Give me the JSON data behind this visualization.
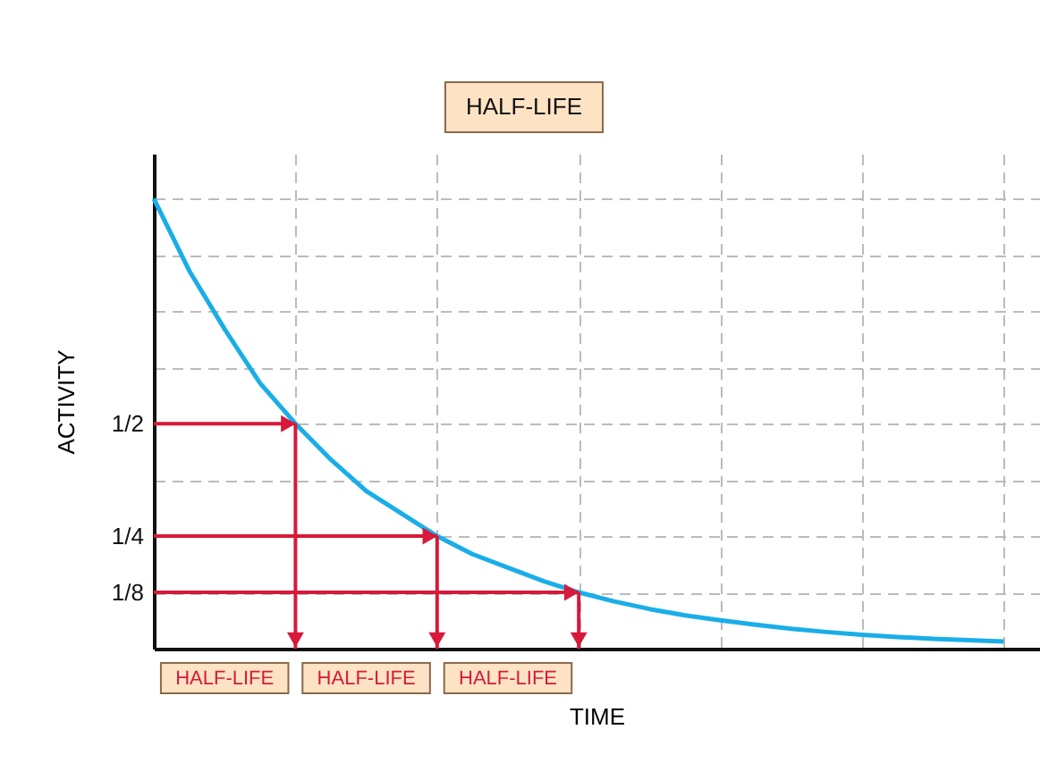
{
  "chart_data": {
    "type": "line",
    "title": "HALF-LIFE",
    "xlabel": "TIME",
    "ylabel": "ACTIVITY",
    "categories": [
      null,
      null,
      null,
      null,
      null,
      null,
      null,
      null,
      null,
      null,
      null,
      null,
      null,
      null,
      null,
      null,
      null,
      null,
      null,
      null,
      null,
      null,
      null,
      null,
      null
    ],
    "ylim": [
      0,
      1.1
    ],
    "yticks": [
      {
        "value": 0.125,
        "label": "1/8"
      },
      {
        "value": 0.25,
        "label": "1/4"
      },
      {
        "value": 0.375,
        "label": null
      },
      {
        "value": 0.5,
        "label": "1/2"
      },
      {
        "value": 0.625,
        "label": null
      },
      {
        "value": 0.75,
        "label": null
      },
      {
        "value": 0.875,
        "label": null
      },
      {
        "value": 1,
        "label": null
      }
    ],
    "tick_labels": "y",
    "grid": true,
    "marker": "none",
    "line_style": "solid",
    "series": [
      {
        "color": "#1aaee8",
        "values": [
          1,
          0.84,
          0.71,
          0.59,
          0.5,
          0.42,
          0.35,
          0.3,
          0.25,
          0.21,
          0.18,
          0.15,
          0.125,
          0.105,
          0.088,
          0.074,
          0.063,
          0.053,
          0.044,
          0.037,
          0.031,
          0.026,
          0.022,
          0.019,
          0.016
        ]
      }
    ],
    "annotations": [
      "HALF-LIFE",
      "HALF-LIFE",
      "HALF-LIFE"
    ]
  }
}
